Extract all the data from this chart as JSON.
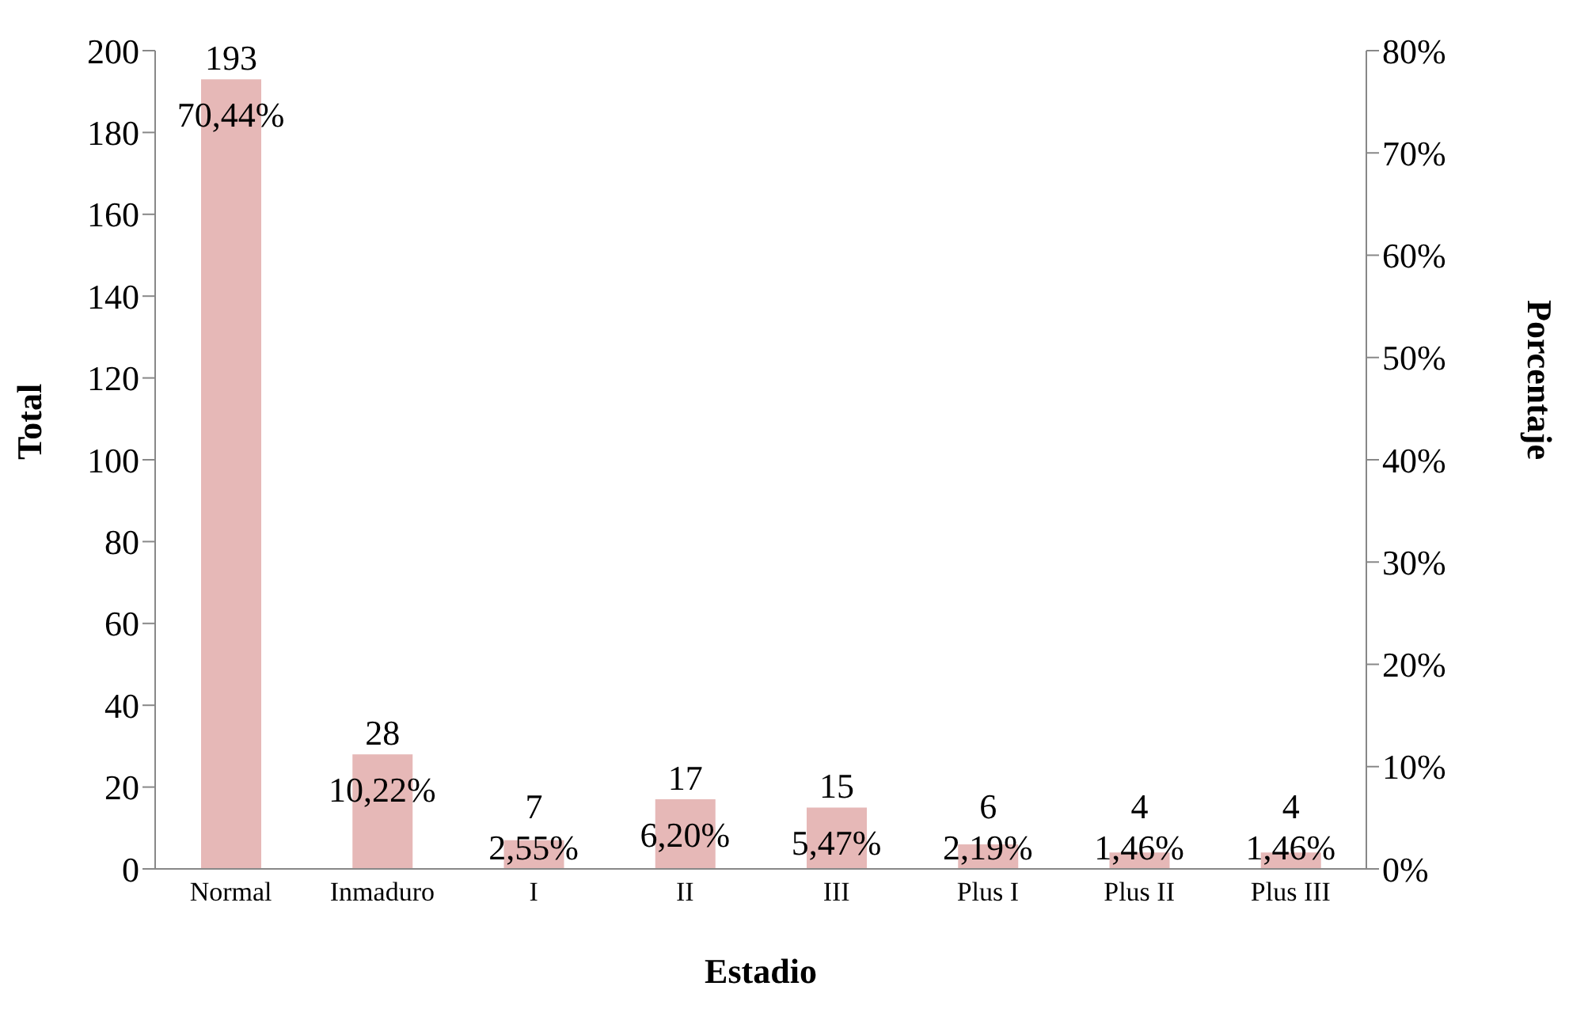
{
  "chart_data": {
    "type": "bar",
    "xlabel": "Estadio",
    "ylabel": "Total",
    "y2label": "Porcentaje",
    "categories": [
      "Normal",
      "Inmaduro",
      "I",
      "II",
      "III",
      "Plus I",
      "Plus II",
      "Plus III"
    ],
    "series": [
      {
        "color": "#e6b8b7",
        "values": [
          193,
          28,
          7,
          17,
          15,
          6,
          4,
          4
        ],
        "value_labels": [
          "193",
          "28",
          "7",
          "17",
          "15",
          "6",
          "4",
          "4"
        ]
      }
    ],
    "annotations": [
      {
        "text": "70,44%",
        "x": "Normal",
        "y": 193
      },
      {
        "text": "10,22%",
        "x": "Inmaduro",
        "y": 28
      },
      {
        "text": "2,55%",
        "x": "I",
        "y": 7
      },
      {
        "text": "6,20%",
        "x": "II",
        "y": 17
      },
      {
        "text": "5,47%",
        "x": "III",
        "y": 15
      },
      {
        "text": "2,19%",
        "x": "Plus I",
        "y": 6
      },
      {
        "text": "1,46%",
        "x": "Plus II",
        "y": 4
      },
      {
        "text": "1,46%",
        "x": "Plus III",
        "y": 4
      }
    ],
    "ylim": [
      0,
      200
    ],
    "yticks": [
      0,
      20,
      40,
      60,
      80,
      100,
      120,
      140,
      160,
      180,
      200
    ],
    "y2lim": [
      0,
      80
    ],
    "y2ticks": [
      {
        "value": 0,
        "label": "0%"
      },
      {
        "value": 10,
        "label": "10%"
      },
      {
        "value": 20,
        "label": "20%"
      },
      {
        "value": 30,
        "label": "30%"
      },
      {
        "value": 40,
        "label": "40%"
      },
      {
        "value": 50,
        "label": "50%"
      },
      {
        "value": 60,
        "label": "60%"
      },
      {
        "value": 70,
        "label": "70%"
      },
      {
        "value": 80,
        "label": "80%"
      }
    ],
    "grid": false,
    "legend": false
  }
}
